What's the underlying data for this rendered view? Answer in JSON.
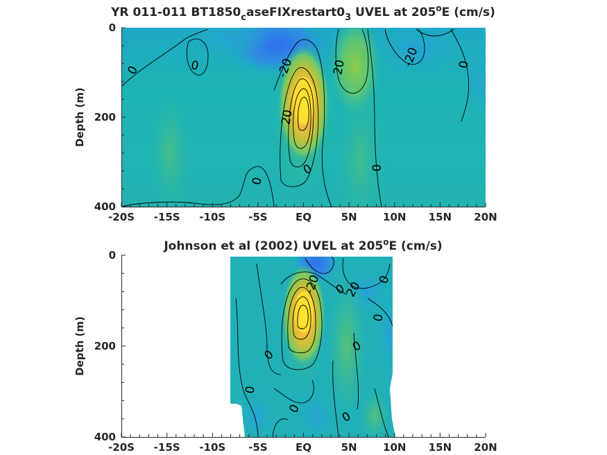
{
  "chart_data": [
    {
      "type": "contour",
      "title": {
        "pre": "YR 011-011 BT1850",
        "sub1": "c",
        "mid": "aseFIXrestart0",
        "sub2": "3",
        "post1": " UVEL at 205",
        "sup": "o",
        "post2": "E (cm/s)"
      },
      "ylabel": "Depth (m)",
      "xlim": [
        -20,
        20
      ],
      "ylim": [
        0,
        400
      ],
      "y_reversed": true,
      "x_tick_labels": [
        "-20S",
        "-15S",
        "-10S",
        "-5S",
        "EQ",
        "5N",
        "10N",
        "15N",
        "20N"
      ],
      "y_tick_labels": [
        "0",
        "200",
        "400"
      ],
      "contour_labels": [
        "0",
        "0",
        "-20",
        "20",
        "-20",
        "0",
        "20",
        "0",
        "0",
        "0"
      ],
      "features": [
        {
          "kind": "max",
          "x": 0.3,
          "depth": 150,
          "value": 100
        },
        {
          "kind": "max",
          "x": 5,
          "depth": 90,
          "value": 40
        },
        {
          "kind": "min",
          "x": -2,
          "depth": 50,
          "value": -40
        }
      ]
    },
    {
      "type": "contour",
      "title": {
        "pre": "Johnson et al (2002) UVEL at 205",
        "sup": "o",
        "post2": "E (cm/s)"
      },
      "ylabel": "Depth (m)",
      "xlim": [
        -20,
        20
      ],
      "ylim": [
        0,
        400
      ],
      "y_reversed": true,
      "data_extent_x": [
        -8,
        10
      ],
      "x_tick_labels": [
        "-20S",
        "-15S",
        "-10S",
        "-5S",
        "EQ",
        "5N",
        "10N",
        "15N",
        "20N"
      ],
      "y_tick_labels": [
        "0",
        "200",
        "400"
      ],
      "contour_labels": [
        "-20",
        "20",
        "0",
        "0",
        "0",
        "0",
        "0",
        "0",
        "0",
        "0"
      ],
      "features": [
        {
          "kind": "max",
          "x": 0.1,
          "depth": 140,
          "value": 100
        },
        {
          "kind": "min",
          "x": 2,
          "depth": 20,
          "value": -40
        }
      ]
    }
  ]
}
